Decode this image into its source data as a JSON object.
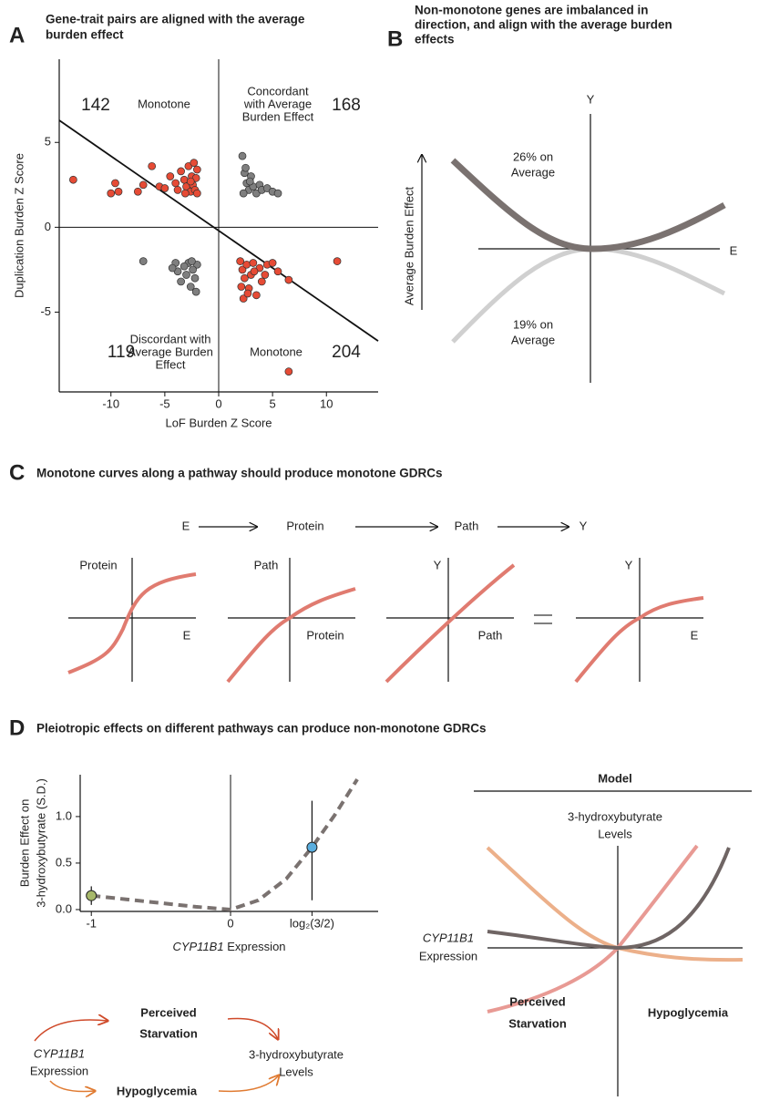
{
  "chart_data": [
    {
      "type": "scatter",
      "panel": "A",
      "title": [
        "Gene-trait pairs are aligned with the average",
        "burden effect"
      ],
      "x_label": "LoF Burden Z Score",
      "y_label": "Duplication Burden Z Score",
      "xlim": [
        -14.8,
        14.8
      ],
      "ylim": [
        -9.7,
        9.9
      ],
      "xticks": [
        -10,
        -5,
        0,
        5,
        10
      ],
      "yticks": [
        -5,
        0,
        5
      ],
      "fit_line": {
        "x": [
          -14.8,
          14.8
        ],
        "y": [
          6.3,
          -6.7
        ]
      },
      "quadrants": [
        {
          "count": 142,
          "label": [
            "Monotone"
          ]
        },
        {
          "count": 168,
          "label": [
            "Concordant",
            "with Average",
            "Burden Effect"
          ]
        },
        {
          "count": 119,
          "label": [
            "Discordant with",
            "Average Burden",
            "Effect"
          ]
        },
        {
          "count": 204,
          "label": [
            "Monotone"
          ]
        }
      ],
      "series": [
        {
          "color": "#e64b35",
          "x": [
            -13.5,
            -10,
            -9.6,
            -9.3,
            -7.5,
            -7,
            -6.2,
            -5.5,
            -5,
            -4.5,
            -4,
            -3.8,
            -3.5,
            -3.2,
            -3,
            -2.8,
            -2.6,
            -2.5,
            -2.4,
            -2.3,
            -2.2,
            -2.1,
            -2,
            -2,
            -2.6,
            -3.1,
            2,
            2.2,
            2.4,
            2.6,
            2.8,
            3,
            3.2,
            3.5,
            3.8,
            4,
            4.5,
            5,
            5.5,
            6.5,
            2.3,
            2.7,
            3.3,
            2.1,
            11,
            6.5,
            4.3
          ],
          "y": [
            2.8,
            2,
            2.6,
            2.1,
            2.1,
            2.5,
            3.6,
            2.4,
            2.3,
            3,
            2.6,
            2.2,
            3.3,
            2.8,
            2.4,
            3.6,
            2.1,
            3,
            2.5,
            3.8,
            2.2,
            2.9,
            2,
            3.4,
            2.7,
            2,
            -2,
            -2.5,
            -3,
            -2.2,
            -3.6,
            -2.8,
            -2.1,
            -4,
            -2.4,
            -3.2,
            -2.2,
            -2.1,
            -2.6,
            -3.1,
            -4.2,
            -3.9,
            -2.6,
            -3.5,
            -2,
            -8.5,
            -2.8
          ]
        },
        {
          "color": "#7f7f7f",
          "x": [
            2.2,
            2.4,
            2.6,
            2.8,
            3,
            3.2,
            3.5,
            3.8,
            4,
            4.5,
            5,
            5.5,
            2.3,
            2.5,
            2.9,
            -7,
            -2,
            -2.2,
            -2.4,
            -2.6,
            -2.8,
            -3,
            -3.2,
            -3.5,
            -3.8,
            -4,
            -2.1,
            -2.5,
            -4.3
          ],
          "y": [
            4.2,
            3.2,
            2.6,
            2.2,
            3,
            2.4,
            2,
            2.5,
            2.2,
            2.3,
            2.1,
            2,
            2,
            3.5,
            2.7,
            -2,
            -2.2,
            -3,
            -2.5,
            -3.5,
            -2.1,
            -2.8,
            -2.3,
            -3.2,
            -2.6,
            -2.1,
            -3.8,
            -2,
            -2.4
          ]
        }
      ]
    },
    {
      "type": "line",
      "panel": "D",
      "title": "Pleiotropic effects on different pathways can produce non-monotone GDRCs",
      "x_label_gene": "CYP11B1",
      "x_label": "Expression",
      "y_label": [
        "Burden Effect on",
        "3-hydroxybutyrate (S.D.)"
      ],
      "xlim": [
        -1.08,
        1.06
      ],
      "ylim": [
        -0.02,
        1.45
      ],
      "xticks": [
        -1,
        0,
        {
          "value": 0.585,
          "label": "log₂(3/2)"
        }
      ],
      "yticks": [
        {
          "value": 0,
          "label": "0.0"
        },
        {
          "value": 0.5,
          "label": "0.5"
        },
        {
          "value": 1,
          "label": "1.0"
        }
      ],
      "series": [
        {
          "color": "#7a7270",
          "x": [
            -1,
            -0.75,
            -0.5,
            -0.25,
            0,
            0.2,
            0.4,
            0.585,
            0.75,
            0.91
          ],
          "values": [
            0.15,
            0.11,
            0.07,
            0.03,
            0,
            0.1,
            0.33,
            0.67,
            1.02,
            1.4
          ]
        }
      ],
      "points": [
        {
          "x": -1,
          "value": 0.15,
          "error": [
            0.1,
            0.1
          ],
          "color": "#a7b86a"
        },
        {
          "x": 0.585,
          "value": 0.67,
          "error": [
            0.57,
            0.5
          ],
          "color": "#5aaedf"
        }
      ]
    }
  ],
  "panel_b": {
    "panel": "B",
    "title": [
      "Non-monotone genes are imbalanced in",
      "direction, and align with the average burden",
      "effects"
    ],
    "y_axis": "Y",
    "x_axis": "E",
    "y_label": "Average Burden Effect",
    "upper": [
      "26% on",
      "Average"
    ],
    "lower": [
      "19% on",
      "Average"
    ]
  },
  "panel_c": {
    "panel": "C",
    "title": "Monotone curves along a pathway should produce monotone GDRCs",
    "flow": [
      "E",
      "Protein",
      "Path",
      "Y"
    ],
    "plots": [
      {
        "y": "Protein",
        "x": "E"
      },
      {
        "y": "Path",
        "x": "Protein"
      },
      {
        "y": "Y",
        "x": "Path"
      },
      {
        "y": "Y",
        "x": "E"
      }
    ]
  },
  "panel_d_pathway": {
    "gene": "CYP11B1",
    "source": "Expression",
    "upper": [
      "Perceived",
      "Starvation"
    ],
    "lower": "Hypoglycemia",
    "target": [
      "3-hydroxybutyrate",
      "Levels"
    ]
  },
  "panel_d_model": {
    "title": "Model",
    "y_label": [
      "3-hydroxybutyrate",
      "Levels"
    ],
    "x_gene": "CYP11B1",
    "x_label": "Expression",
    "left": [
      "Perceived",
      "Starvation"
    ],
    "right": "Hypoglycemia"
  }
}
